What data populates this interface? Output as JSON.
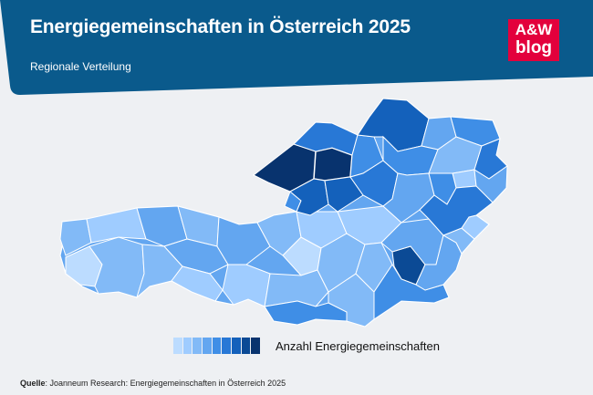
{
  "header": {
    "title": "Energiegemeinschaften in Österreich 2025",
    "subtitle": "Regionale Verteilung",
    "background_color": "#0a5a8c"
  },
  "logo": {
    "line1": "A&W",
    "line2": "blog",
    "color": "#e3003c"
  },
  "legend": {
    "label": "Anzahl Energiegemeinschaften",
    "colors": [
      "#bcdcff",
      "#9fccff",
      "#82baf7",
      "#63a6f0",
      "#3f8ee6",
      "#2878d6",
      "#1461bb",
      "#0b4a95",
      "#08336e"
    ]
  },
  "source": {
    "label": "Quelle",
    "text": ": Joanneum Research: Energiegemeinschaften in Österreich 2025"
  },
  "map": {
    "darkest_color": "#08336e",
    "darker_color": "#0b4a95",
    "districts": [
      {
        "level": 4
      },
      {
        "level": 5
      },
      {
        "level": 6
      },
      {
        "level": 7
      },
      {
        "level": 8
      },
      {
        "level": 3
      },
      {
        "level": 2
      },
      {
        "level": 1
      },
      {
        "level": 0
      },
      {
        "level": 4
      }
    ]
  }
}
